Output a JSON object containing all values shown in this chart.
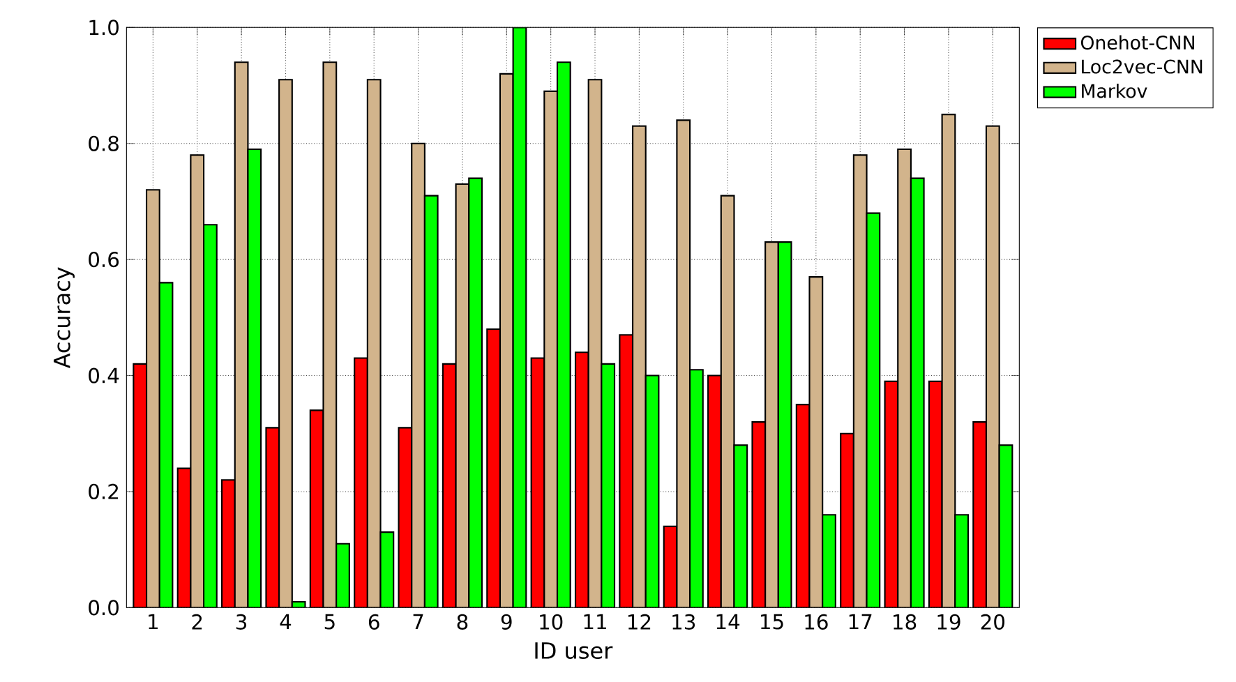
{
  "chart_data": {
    "type": "bar",
    "xlabel": "ID user",
    "ylabel": "Accuracy",
    "categories": [
      "1",
      "2",
      "3",
      "4",
      "5",
      "6",
      "7",
      "8",
      "9",
      "10",
      "11",
      "12",
      "13",
      "14",
      "15",
      "16",
      "17",
      "18",
      "19",
      "20"
    ],
    "series": [
      {
        "name": "Onehot-CNN",
        "color": "#ff0000",
        "values": [
          0.42,
          0.24,
          0.22,
          0.31,
          0.34,
          0.43,
          0.31,
          0.42,
          0.48,
          0.43,
          0.44,
          0.47,
          0.14,
          0.4,
          0.32,
          0.35,
          0.3,
          0.39,
          0.39,
          0.32
        ]
      },
      {
        "name": "Loc2vec-CNN",
        "color": "#d2b48c",
        "values": [
          0.72,
          0.78,
          0.94,
          0.91,
          0.94,
          0.91,
          0.8,
          0.73,
          0.92,
          0.89,
          0.91,
          0.83,
          0.84,
          0.71,
          0.63,
          0.57,
          0.78,
          0.79,
          0.85,
          0.83
        ]
      },
      {
        "name": "Markov",
        "color": "#00ff00",
        "values": [
          0.56,
          0.66,
          0.79,
          0.01,
          0.11,
          0.13,
          0.71,
          0.74,
          1.0,
          0.94,
          0.42,
          0.4,
          0.41,
          0.28,
          0.63,
          0.16,
          0.68,
          0.74,
          0.16,
          0.28
        ]
      }
    ],
    "ylim": [
      0,
      1
    ],
    "yticks": [
      {
        "value": 0,
        "label": "0.0"
      },
      {
        "value": 0.2,
        "label": "0.2"
      },
      {
        "value": 0.4,
        "label": "0.4"
      },
      {
        "value": 0.6,
        "label": "0.6"
      },
      {
        "value": 0.8,
        "label": "0.8"
      },
      {
        "value": 1,
        "label": "1.0"
      }
    ],
    "grid": true,
    "legend": "top right"
  }
}
